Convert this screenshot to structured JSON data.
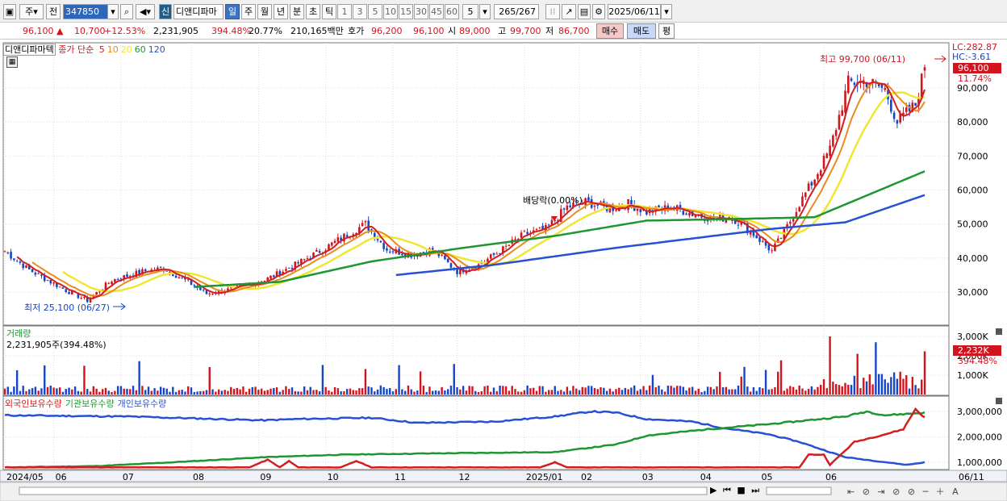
{
  "toolbar": {
    "market": "주",
    "prev_btn": "전",
    "code": "347850",
    "sin_label": "신",
    "stock_name": "디앤디파마",
    "periods": [
      "일",
      "주",
      "월",
      "년",
      "분",
      "초",
      "틱"
    ],
    "active_period": "일",
    "intervals": [
      "1",
      "3",
      "5",
      "10",
      "15",
      "30",
      "45",
      "60"
    ],
    "count": "5",
    "bars_shown": "265",
    "bars_total": "/267",
    "date": "2025/06/11"
  },
  "quote": {
    "price": "96,100",
    "change": "10,700",
    "change_pct": "+12.53%",
    "volume": "2,231,905",
    "vol_ratio": "394.48%",
    "turnover": "20.77%",
    "amount": "210,165백만",
    "hoga_label": "호가",
    "ask": "96,200",
    "bid": "96,100",
    "open_label": "시",
    "open": "89,000",
    "high_label": "고",
    "high": "99,700",
    "low_label": "저",
    "low": "86,700",
    "buy_btn": "매수",
    "sell_btn": "매도",
    "eval_btn": "평"
  },
  "price_pane": {
    "title": "디앤디파마텍",
    "legend_prefix": "종가 단순",
    "ma_periods": [
      "5",
      "10",
      "20",
      "60",
      "120"
    ],
    "ma_colors": [
      "#d21e1e",
      "#e88c1e",
      "#f0e632",
      "#1e9632",
      "#2850d2"
    ],
    "lc": "LC:282.87",
    "hc": "HC:-3.61",
    "cur_price_tag": "96,100",
    "cur_pct_tag": "11.74%",
    "high_note": "최고 99,700 (06/11)",
    "low_note": "최저 25,100 (06/27)",
    "dividend_note": "배당락(0.00%)",
    "y_ticks": [
      "90,000",
      "80,000",
      "70,000",
      "60,000",
      "50,000",
      "40,000",
      "30,000"
    ]
  },
  "volume_pane": {
    "title": "거래량",
    "value": "2,231,905주(394.48%)",
    "cur_tag": "2,232K",
    "pct_tag": "394.48%",
    "y_ticks": [
      "3,000K",
      "2,000K",
      "1,000K"
    ]
  },
  "holding_pane": {
    "legend": [
      "외국인보유수량",
      "기관보유수량",
      "개인보유수량"
    ],
    "colors": [
      "#d21e1e",
      "#1e9632",
      "#2850d2"
    ],
    "y_ticks": [
      "3,000,000",
      "2,000,000",
      "1,000,000"
    ]
  },
  "x_axis": {
    "labels": [
      "2024/05",
      "06",
      "07",
      "08",
      "09",
      "10",
      "11",
      "12",
      "2025/01",
      "02",
      "03",
      "04",
      "05",
      "06"
    ],
    "end_date": "06/11"
  },
  "chart_data": {
    "type": "candlestick",
    "months": [
      "2024/05",
      "06",
      "07",
      "08",
      "09",
      "10",
      "11",
      "12",
      "2025/01",
      "02",
      "03",
      "04",
      "05",
      "06"
    ],
    "price_anchors": [
      [
        0,
        42000
      ],
      [
        8,
        36500
      ],
      [
        20,
        30500
      ],
      [
        27,
        27500
      ],
      [
        35,
        33500
      ],
      [
        45,
        36000
      ],
      [
        52,
        37000
      ],
      [
        60,
        33000
      ],
      [
        66,
        29500
      ],
      [
        75,
        31000
      ],
      [
        85,
        33500
      ],
      [
        95,
        38000
      ],
      [
        105,
        43000
      ],
      [
        113,
        47500
      ],
      [
        118,
        50000
      ],
      [
        125,
        42500
      ],
      [
        133,
        41000
      ],
      [
        140,
        42500
      ],
      [
        148,
        36000
      ],
      [
        155,
        38000
      ],
      [
        162,
        42000
      ],
      [
        170,
        47000
      ],
      [
        177,
        48500
      ],
      [
        184,
        55000
      ],
      [
        190,
        56500
      ],
      [
        198,
        54500
      ],
      [
        204,
        56000
      ],
      [
        210,
        53500
      ],
      [
        218,
        55000
      ],
      [
        225,
        53000
      ],
      [
        232,
        51500
      ],
      [
        238,
        52000
      ],
      [
        245,
        47000
      ],
      [
        251,
        42000
      ],
      [
        255,
        47500
      ],
      [
        260,
        56000
      ],
      [
        265,
        63500
      ],
      [
        270,
        72000
      ],
      [
        276,
        91500
      ],
      [
        282,
        92000
      ],
      [
        288,
        89500
      ],
      [
        292,
        80000
      ],
      [
        298,
        85000
      ],
      [
        301,
        96100
      ]
    ],
    "ma60_anchors": [
      [
        62,
        31500
      ],
      [
        90,
        33000
      ],
      [
        120,
        39000
      ],
      [
        150,
        43000
      ],
      [
        180,
        46500
      ],
      [
        210,
        51000
      ],
      [
        240,
        51500
      ],
      [
        265,
        52000
      ],
      [
        285,
        59500
      ],
      [
        301,
        65500
      ]
    ],
    "ma120_anchors": [
      [
        128,
        35000
      ],
      [
        160,
        38000
      ],
      [
        200,
        43000
      ],
      [
        250,
        48500
      ],
      [
        275,
        50500
      ],
      [
        301,
        58500
      ]
    ],
    "high": {
      "value": 99700,
      "date": "06/11"
    },
    "low": {
      "value": 25100,
      "date": "06/27"
    },
    "y_range": [
      20000,
      100000
    ]
  }
}
